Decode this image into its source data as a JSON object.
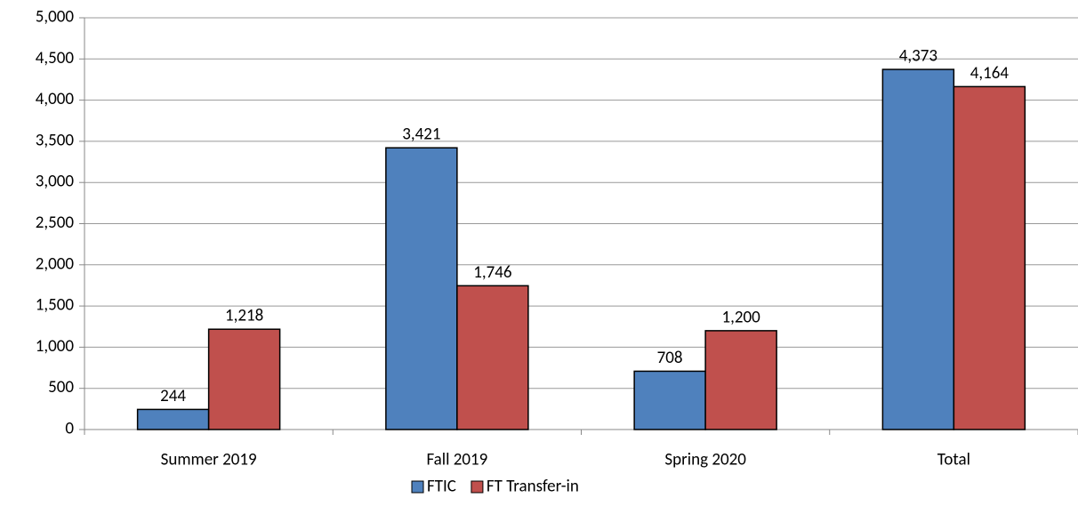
{
  "chart_data": {
    "type": "bar",
    "categories": [
      "Summer 2019",
      "Fall 2019",
      "Spring 2020",
      "Total"
    ],
    "series": [
      {
        "name": "FTIC",
        "color": "#4f81bd",
        "values": [
          244,
          3421,
          708,
          4373
        ],
        "value_labels": [
          "244",
          "3,421",
          "708",
          "4,373"
        ]
      },
      {
        "name": "FT Transfer-in",
        "color": "#c0504d",
        "values": [
          1218,
          1746,
          1200,
          4164
        ],
        "value_labels": [
          "1,218",
          "1,746",
          "1,200",
          "4,164"
        ]
      }
    ],
    "ylim": [
      0,
      5000
    ],
    "yticks": [
      0,
      500,
      {
        "value": 1000,
        "label": "1,000"
      },
      {
        "value": 1500,
        "label": "1,500"
      },
      {
        "value": 2000,
        "label": "2,000"
      },
      {
        "value": 2500,
        "label": "2,500"
      },
      {
        "value": 3000,
        "label": "3,000"
      },
      {
        "value": 3500,
        "label": "3,500"
      },
      {
        "value": 4000,
        "label": "4,000"
      },
      {
        "value": 4500,
        "label": "4,500"
      },
      {
        "value": 5000,
        "label": "5,000"
      }
    ],
    "grid": true,
    "legend": "bottom"
  }
}
